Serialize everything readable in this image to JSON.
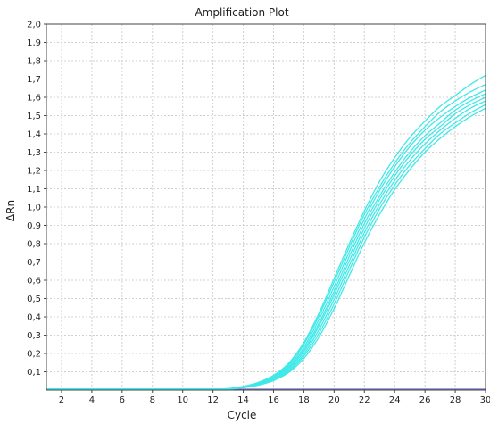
{
  "chart_data": {
    "type": "line",
    "title": "Amplification Plot",
    "xlabel": "Cycle",
    "ylabel": "ΔRn",
    "xlim": [
      1,
      30
    ],
    "ylim": [
      0,
      2.0
    ],
    "xticks": [
      2,
      4,
      6,
      8,
      10,
      12,
      14,
      16,
      18,
      20,
      22,
      24,
      26,
      28,
      30
    ],
    "yticks": [
      0.1,
      0.2,
      0.3,
      0.4,
      0.5,
      0.6,
      0.7,
      0.8,
      0.9,
      1.0,
      1.1,
      1.2,
      1.3,
      1.4,
      1.5,
      1.6,
      1.7,
      1.8,
      1.9,
      2.0
    ],
    "xtick_labels": [
      "2",
      "4",
      "6",
      "8",
      "10",
      "12",
      "14",
      "16",
      "18",
      "20",
      "22",
      "24",
      "26",
      "28",
      "30"
    ],
    "ytick_labels": [
      "0,1",
      "0,2",
      "0,3",
      "0,4",
      "0,5",
      "0,6",
      "0,7",
      "0,8",
      "0,9",
      "1,0",
      "1,1",
      "1,2",
      "1,3",
      "1,4",
      "1,5",
      "1,6",
      "1,7",
      "1,8",
      "1,9",
      "2,0"
    ],
    "grid": true,
    "legend": false,
    "series_color": "#40e8e8",
    "baseline_color": "#7070c8",
    "x": [
      1,
      2,
      3,
      4,
      5,
      6,
      7,
      8,
      9,
      10,
      11,
      12,
      13,
      14,
      15,
      16,
      17,
      18,
      19,
      20,
      21,
      22,
      23,
      24,
      25,
      26,
      27,
      28,
      29,
      30
    ],
    "series": [
      {
        "values": [
          0,
          0,
          0,
          0,
          0,
          0,
          0,
          0,
          0,
          0,
          0,
          0.003,
          0.008,
          0.02,
          0.042,
          0.08,
          0.147,
          0.26,
          0.42,
          0.61,
          0.8,
          0.98,
          1.14,
          1.27,
          1.38,
          1.47,
          1.55,
          1.61,
          1.67,
          1.72
        ]
      },
      {
        "values": [
          0,
          0,
          0,
          0,
          0,
          0,
          0,
          0,
          0,
          0,
          0,
          0.003,
          0.008,
          0.019,
          0.04,
          0.077,
          0.142,
          0.25,
          0.405,
          0.59,
          0.78,
          0.96,
          1.11,
          1.24,
          1.35,
          1.44,
          1.52,
          1.58,
          1.63,
          1.67
        ]
      },
      {
        "values": [
          0,
          0,
          0,
          0,
          0,
          0,
          0,
          0,
          0,
          0,
          0,
          0.003,
          0.007,
          0.018,
          0.037,
          0.072,
          0.133,
          0.235,
          0.385,
          0.565,
          0.755,
          0.935,
          1.09,
          1.22,
          1.33,
          1.42,
          1.49,
          1.55,
          1.6,
          1.64
        ]
      },
      {
        "values": [
          0,
          0,
          0,
          0,
          0,
          0,
          0,
          0,
          0,
          0,
          0,
          0.002,
          0.007,
          0.017,
          0.035,
          0.068,
          0.125,
          0.222,
          0.365,
          0.54,
          0.73,
          0.91,
          1.06,
          1.19,
          1.3,
          1.39,
          1.46,
          1.53,
          1.58,
          1.62
        ]
      },
      {
        "values": [
          0,
          0,
          0,
          0,
          0,
          0,
          0,
          0,
          0,
          0,
          0,
          0.002,
          0.006,
          0.016,
          0.033,
          0.064,
          0.118,
          0.21,
          0.35,
          0.52,
          0.705,
          0.885,
          1.04,
          1.17,
          1.28,
          1.37,
          1.44,
          1.51,
          1.56,
          1.6
        ]
      },
      {
        "values": [
          0,
          0,
          0,
          0,
          0,
          0,
          0,
          0,
          0,
          0,
          0,
          0.002,
          0.006,
          0.015,
          0.031,
          0.06,
          0.11,
          0.197,
          0.33,
          0.495,
          0.68,
          0.86,
          1.015,
          1.145,
          1.255,
          1.345,
          1.42,
          1.485,
          1.54,
          1.58
        ]
      },
      {
        "values": [
          0,
          0,
          0,
          0,
          0,
          0,
          0,
          0,
          0,
          0,
          0,
          0.002,
          0.005,
          0.014,
          0.029,
          0.056,
          0.103,
          0.185,
          0.31,
          0.47,
          0.655,
          0.835,
          0.99,
          1.12,
          1.23,
          1.32,
          1.4,
          1.46,
          1.515,
          1.56
        ]
      },
      {
        "values": [
          0,
          0,
          0,
          0,
          0,
          0,
          0,
          0,
          0,
          0,
          0,
          0.002,
          0.005,
          0.013,
          0.027,
          0.052,
          0.096,
          0.172,
          0.29,
          0.445,
          0.625,
          0.805,
          0.96,
          1.095,
          1.205,
          1.3,
          1.375,
          1.44,
          1.495,
          1.54
        ]
      }
    ]
  }
}
